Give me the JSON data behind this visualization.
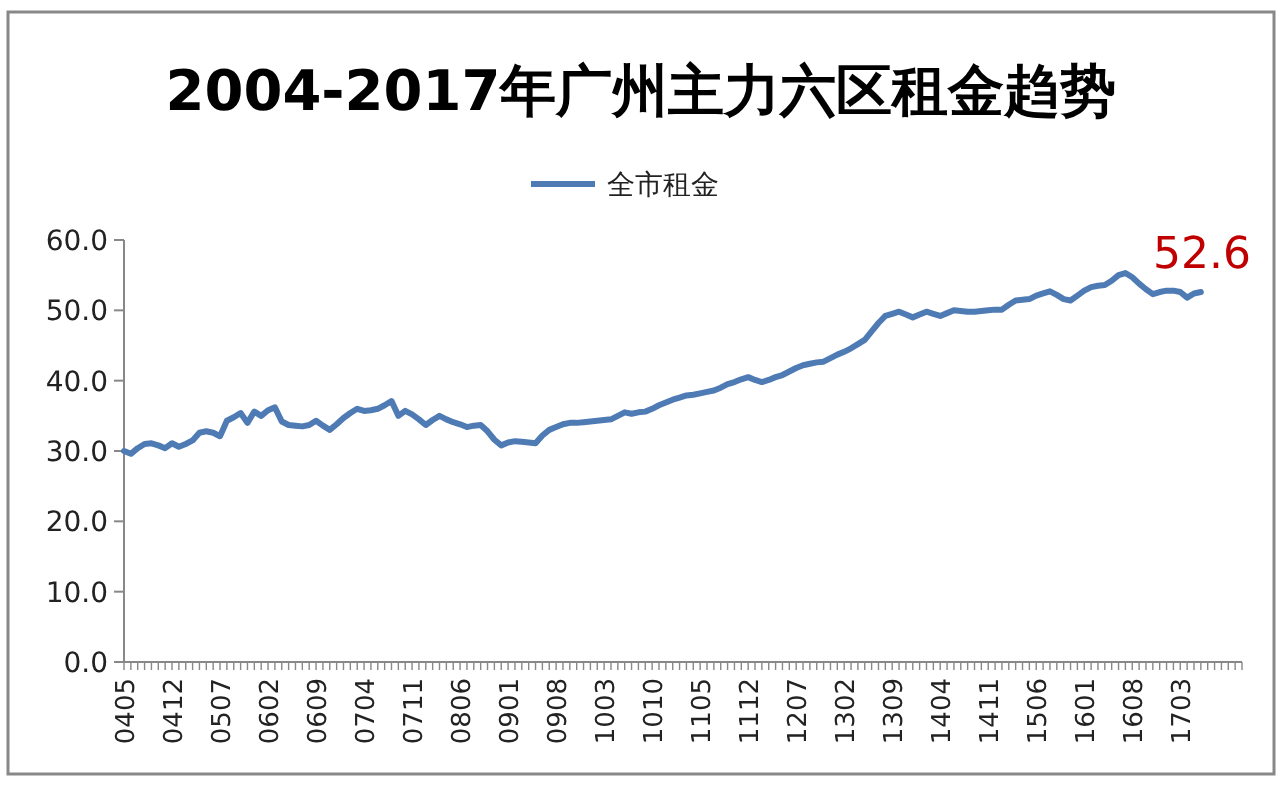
{
  "chart_data": {
    "type": "line",
    "title": "2004-2017年广州主力六区租金趋势",
    "categories": [
      "0405",
      null,
      null,
      null,
      null,
      null,
      null,
      "0412",
      null,
      null,
      null,
      null,
      null,
      null,
      "0507",
      null,
      null,
      null,
      null,
      null,
      null,
      "0602",
      null,
      null,
      null,
      null,
      null,
      null,
      "0609",
      null,
      null,
      null,
      null,
      null,
      null,
      "0704",
      null,
      null,
      null,
      null,
      null,
      null,
      "0711",
      null,
      null,
      null,
      null,
      null,
      null,
      "0806",
      null,
      null,
      null,
      null,
      null,
      null,
      "0901",
      null,
      null,
      null,
      null,
      null,
      null,
      "0908",
      null,
      null,
      null,
      null,
      null,
      null,
      "1003",
      null,
      null,
      null,
      null,
      null,
      null,
      "1010",
      null,
      null,
      null,
      null,
      null,
      null,
      "1105",
      null,
      null,
      null,
      null,
      null,
      null,
      "1112",
      null,
      null,
      null,
      null,
      null,
      null,
      "1207",
      null,
      null,
      null,
      null,
      null,
      null,
      "1302",
      null,
      null,
      null,
      null,
      null,
      null,
      "1309",
      null,
      null,
      null,
      null,
      null,
      null,
      "1404",
      null,
      null,
      null,
      null,
      null,
      null,
      "1411",
      null,
      null,
      null,
      null,
      null,
      null,
      "1506",
      null,
      null,
      null,
      null,
      null,
      null,
      "1601",
      null,
      null,
      null,
      null,
      null,
      null,
      "1608",
      null,
      null,
      null,
      null,
      null,
      null,
      "1703",
      null,
      null,
      null,
      null,
      null,
      null,
      null,
      null,
      null
    ],
    "series": [
      {
        "name": "全市租金",
        "color": "#4f7bb5",
        "values": [
          30.0,
          29.6,
          30.4,
          31.0,
          31.1,
          30.8,
          30.4,
          31.1,
          30.6,
          31.0,
          31.5,
          32.6,
          32.8,
          32.6,
          32.1,
          34.3,
          34.8,
          35.4,
          34.0,
          35.6,
          35.0,
          35.8,
          36.2,
          34.2,
          33.7,
          33.6,
          33.5,
          33.7,
          34.3,
          33.6,
          33.0,
          33.8,
          34.7,
          35.4,
          36.0,
          35.7,
          35.8,
          36.0,
          36.5,
          37.1,
          35.0,
          35.7,
          35.2,
          34.5,
          33.7,
          34.4,
          35.0,
          34.5,
          34.1,
          33.8,
          33.4,
          33.6,
          33.7,
          32.8,
          31.6,
          30.8,
          31.2,
          31.4,
          31.3,
          31.2,
          31.1,
          32.2,
          33.0,
          33.4,
          33.8,
          34.0,
          34.0,
          34.1,
          34.2,
          34.3,
          34.4,
          34.5,
          35.0,
          35.5,
          35.3,
          35.5,
          35.6,
          36.0,
          36.5,
          36.9,
          37.3,
          37.6,
          37.9,
          38.0,
          38.2,
          38.4,
          38.6,
          39.0,
          39.5,
          39.8,
          40.2,
          40.5,
          40.1,
          39.8,
          40.1,
          40.5,
          40.8,
          41.3,
          41.8,
          42.2,
          42.4,
          42.6,
          42.7,
          43.2,
          43.7,
          44.1,
          44.6,
          45.2,
          45.8,
          47.0,
          48.2,
          49.2,
          49.5,
          49.8,
          49.4,
          49.0,
          49.4,
          49.8,
          49.5,
          49.2,
          49.6,
          50.0,
          49.9,
          49.8,
          49.8,
          49.9,
          50.0,
          50.1,
          50.1,
          50.8,
          51.4,
          51.5,
          51.6,
          52.1,
          52.4,
          52.7,
          52.2,
          51.6,
          51.4,
          52.1,
          52.8,
          53.3,
          53.5,
          53.6,
          54.2,
          55.0,
          55.3,
          54.7,
          53.8,
          53.0,
          52.3,
          52.6,
          52.8,
          52.8,
          52.6,
          51.8,
          52.4,
          52.6,
          null,
          null,
          null,
          null,
          null,
          null
        ]
      }
    ],
    "ylim": [
      0,
      60
    ],
    "yticks": [
      {
        "value": 0,
        "label": "0.0"
      },
      {
        "value": 10,
        "label": "10.0"
      },
      {
        "value": 20,
        "label": "20.0"
      },
      {
        "value": 30,
        "label": "30.0"
      },
      {
        "value": 40,
        "label": "40.0"
      },
      {
        "value": 50,
        "label": "50.0"
      },
      {
        "value": 60,
        "label": "60.0"
      }
    ],
    "legend": "top",
    "grid": false,
    "annotations": [
      "52.6"
    ]
  }
}
